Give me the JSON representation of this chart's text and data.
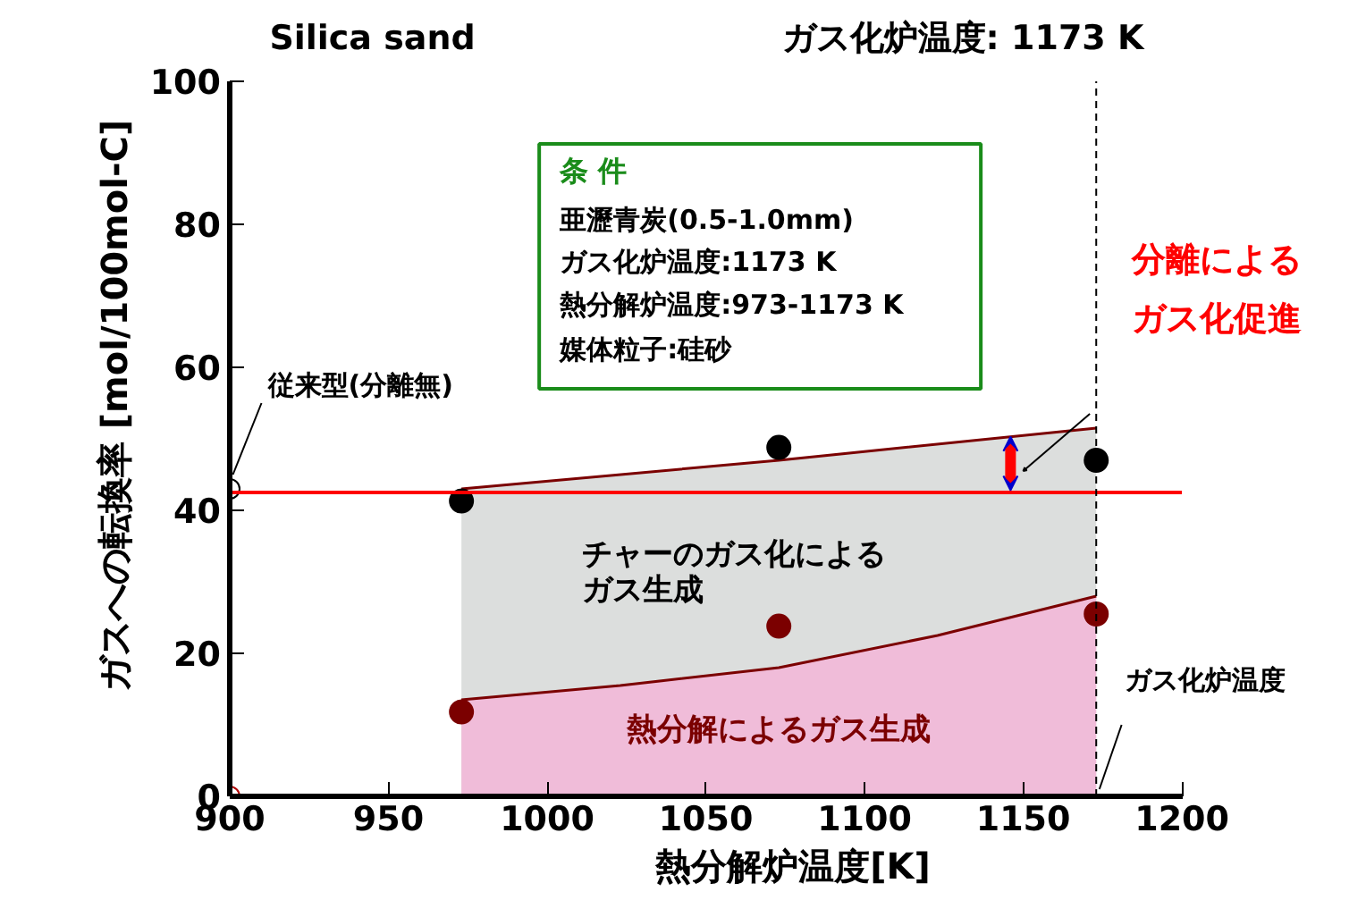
{
  "chart_data": {
    "type": "scatter",
    "title": "ガス化炉温度: 1173 K",
    "xlabel": "熱分解炉温度[K]",
    "ylabel": "ガスへの転換率  [mol/100mol-C]",
    "xlim": [
      900,
      1200
    ],
    "ylim": [
      0,
      100
    ],
    "xticks": [
      900,
      950,
      1000,
      1050,
      1100,
      1150,
      1200
    ],
    "yticks": [
      0,
      20,
      40,
      60,
      80,
      100
    ],
    "grid": false,
    "series": [
      {
        "type": "area",
        "color": "#dcdedd",
        "x": [
          973,
          1073,
          1173
        ],
        "values": [
          43,
          47,
          51.5
        ]
      },
      {
        "type": "area",
        "color": "#f0bcd9",
        "x": [
          973,
          1023,
          1073,
          1123,
          1173
        ],
        "values": [
          13.5,
          15.5,
          18,
          22.5,
          28
        ]
      },
      {
        "marker": "circle",
        "color": "#000000",
        "x": [
          973,
          1073,
          1173
        ],
        "values": [
          41.3,
          48.8,
          47
        ]
      },
      {
        "marker": "circle",
        "color": "#7b0000",
        "x": [
          973,
          1073,
          1173
        ],
        "values": [
          11.8,
          23.8,
          25.5
        ]
      },
      {
        "marker": "circle",
        "color": "#000000",
        "x": [
          900
        ],
        "values": [
          43
        ]
      },
      {
        "marker": "circle",
        "color": "#b00000",
        "x": [
          900
        ],
        "values": [
          0
        ]
      }
    ],
    "ref_lines": [
      {
        "axis": "y",
        "value": 42.5,
        "color": "#ff0000",
        "line_style": "solid"
      },
      {
        "axis": "x",
        "value": 1173,
        "label": "ガス化炉温度",
        "color": "#000000",
        "line_style": "dashed"
      }
    ],
    "annotations": [
      "Silica sand",
      "条 件",
      "亜瀝青炭(0.5-1.0mm)",
      "ガス化炉温度:1173 K",
      "熱分解炉温度:973-1173 K",
      "媒体粒子:硅砂",
      {
        "text": "従来型(分離無)",
        "x": 900,
        "y": 43
      },
      "分離による",
      "ガス化促進",
      "チャーのガス化による",
      "ガス生成",
      "熱分解によるガス生成"
    ]
  }
}
